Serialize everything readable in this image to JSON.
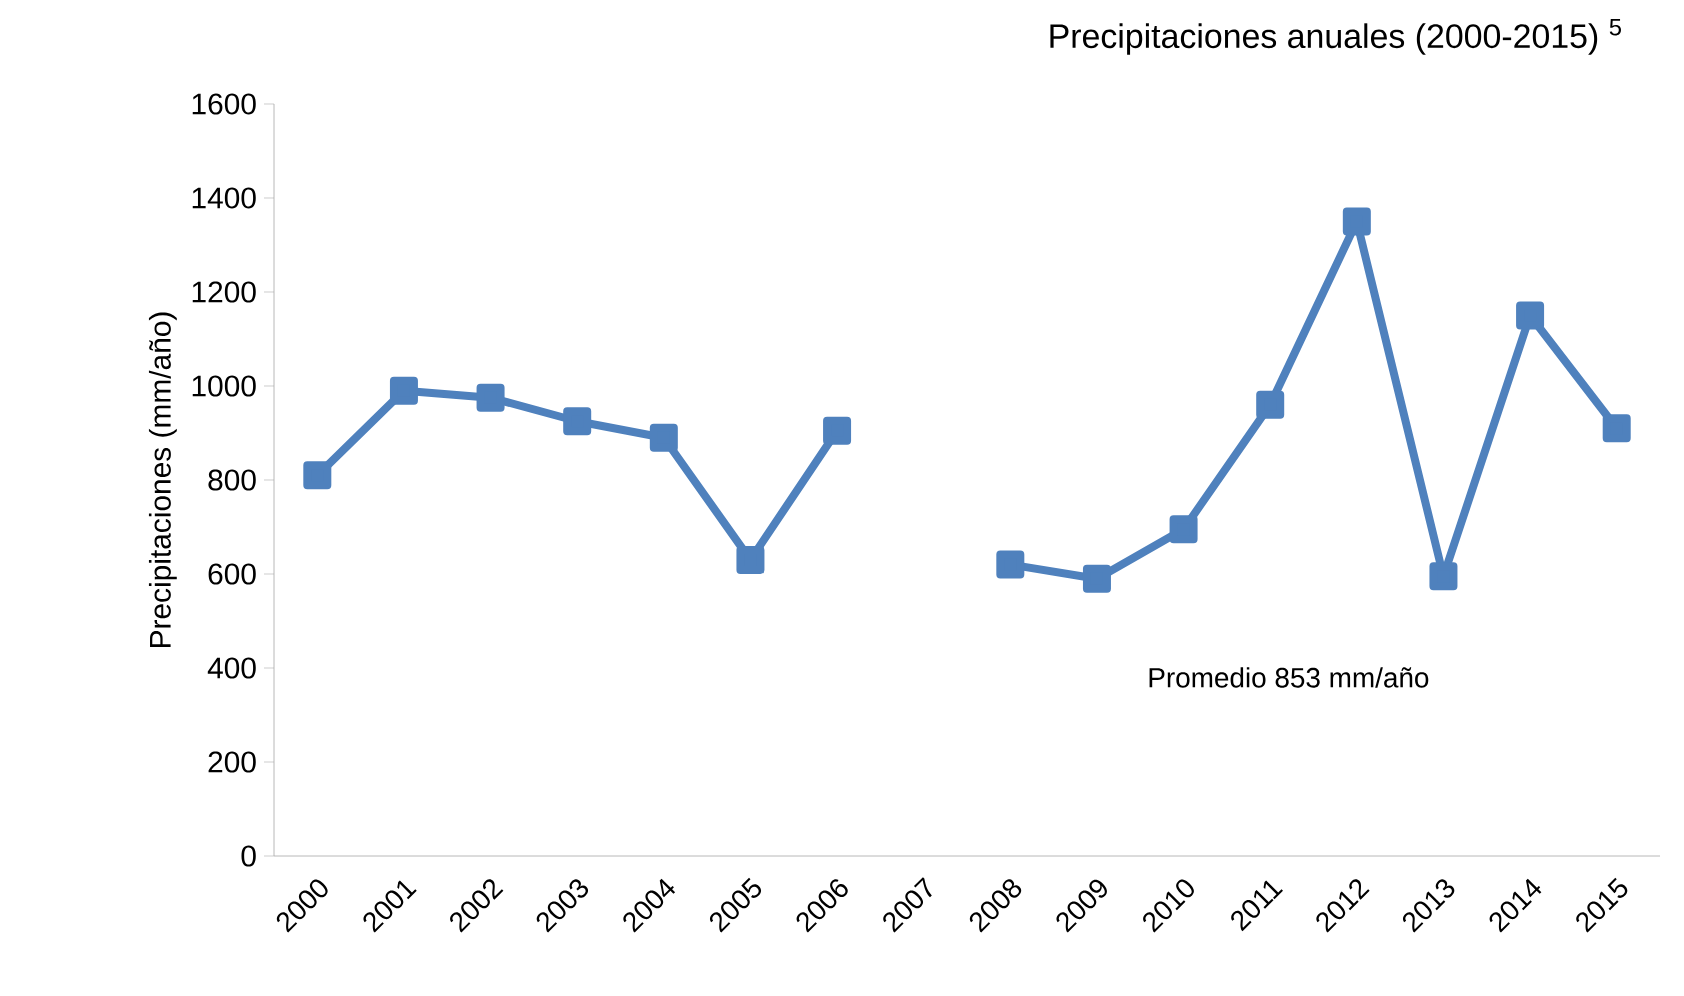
{
  "chart_data": {
    "type": "line",
    "title": "Precipitaciones anuales (2000-2015) $^{5}$",
    "ylabel": "Precipitaciones (mm/año)",
    "categories": [
      "2000",
      "2001",
      "2002",
      "2003",
      "2004",
      "2005",
      "2006",
      "2007",
      "2008",
      "2009",
      "2010",
      "2011",
      "2012",
      "2013",
      "2014",
      "2015"
    ],
    "series": [
      {
        "color": "#4f81bd",
        "values": [
          810,
          990,
          975,
          925,
          890,
          630,
          905,
          null,
          620,
          590,
          695,
          960,
          1350,
          595,
          1150,
          910
        ]
      }
    ],
    "ylim": [
      0,
      1600
    ],
    "yticks": [
      0,
      200,
      400,
      600,
      800,
      1000,
      1200,
      1400,
      1600
    ],
    "marker": "square",
    "line_style": "solid",
    "annotations": [
      "Promedio 853 mm/año"
    ]
  }
}
